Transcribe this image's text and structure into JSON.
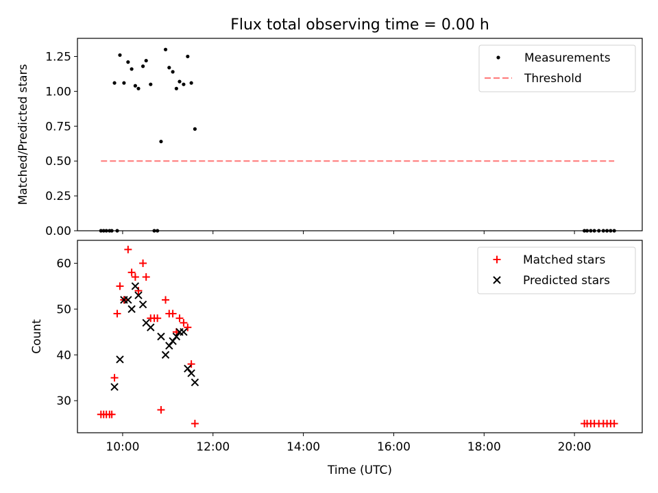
{
  "title": "Flux total observing time = 0.00 h",
  "chart_data": [
    {
      "type": "scatter",
      "ylabel": "Matched/Predicted stars",
      "xlabel": "",
      "xlim": [
        9.0,
        21.5
      ],
      "ylim": [
        0.0,
        1.38
      ],
      "yticks": [
        0.0,
        0.25,
        0.5,
        0.75,
        1.0,
        1.25
      ],
      "ytick_labels": [
        "0.00",
        "0.25",
        "0.50",
        "0.75",
        "1.00",
        "1.25"
      ],
      "legend_position": "upper-right",
      "series": [
        {
          "name": "Measurements",
          "marker": "dot",
          "color": "#000000",
          "x": [
            9.52,
            9.58,
            9.64,
            9.71,
            9.76,
            9.82,
            9.88,
            9.94,
            10.03,
            10.12,
            10.2,
            10.28,
            10.35,
            10.45,
            10.52,
            10.62,
            10.7,
            10.77,
            10.85,
            10.95,
            11.03,
            11.11,
            11.19,
            11.26,
            11.35,
            11.44,
            11.52,
            11.6,
            20.22,
            20.28,
            20.36,
            20.44,
            20.54,
            20.64,
            20.72,
            20.8,
            20.88
          ],
          "y": [
            0.0,
            0.0,
            0.0,
            0.0,
            0.0,
            1.06,
            0.0,
            1.26,
            1.06,
            1.21,
            1.16,
            1.04,
            1.02,
            1.18,
            1.22,
            1.05,
            0.0,
            0.0,
            0.64,
            1.3,
            1.17,
            1.14,
            1.02,
            1.07,
            1.05,
            1.25,
            1.06,
            0.73,
            0.0,
            0.0,
            0.0,
            0.0,
            0.0,
            0.0,
            0.0,
            0.0,
            0.0
          ]
        },
        {
          "name": "Threshold",
          "marker": "dashed-line",
          "color": "#ff7f7f",
          "x": [
            9.52,
            20.88
          ],
          "y": [
            0.5,
            0.5
          ]
        }
      ]
    },
    {
      "type": "scatter",
      "ylabel": "Count",
      "xlabel": "Time (UTC)",
      "xlim": [
        9.0,
        21.5
      ],
      "ylim": [
        23.0,
        65.0
      ],
      "yticks": [
        30,
        40,
        50,
        60
      ],
      "ytick_labels": [
        "30",
        "40",
        "50",
        "60"
      ],
      "xticks": [
        10,
        12,
        14,
        16,
        18,
        20
      ],
      "xtick_labels": [
        "10:00",
        "12:00",
        "14:00",
        "16:00",
        "18:00",
        "20:00"
      ],
      "legend_position": "upper-right",
      "series": [
        {
          "name": "Matched stars",
          "marker": "plus",
          "color": "#ff0000",
          "x": [
            9.52,
            9.58,
            9.64,
            9.71,
            9.76,
            9.82,
            9.88,
            9.94,
            10.03,
            10.12,
            10.2,
            10.28,
            10.35,
            10.45,
            10.52,
            10.62,
            10.7,
            10.77,
            10.85,
            10.95,
            11.03,
            11.11,
            11.19,
            11.26,
            11.35,
            11.44,
            11.52,
            11.6,
            20.22,
            20.28,
            20.36,
            20.44,
            20.54,
            20.64,
            20.72,
            20.8,
            20.88
          ],
          "y": [
            27,
            27,
            27,
            27,
            27,
            35,
            49,
            55,
            52,
            63,
            58,
            57,
            54,
            60,
            57,
            48,
            48,
            48,
            28,
            52,
            49,
            49,
            45,
            48,
            47,
            46,
            38,
            25,
            25,
            25,
            25,
            25,
            25,
            25,
            25,
            25,
            25
          ]
        },
        {
          "name": "Predicted stars",
          "marker": "x",
          "color": "#000000",
          "x": [
            9.82,
            9.94,
            10.03,
            10.12,
            10.2,
            10.28,
            10.35,
            10.45,
            10.52,
            10.62,
            10.85,
            10.95,
            11.03,
            11.11,
            11.19,
            11.26,
            11.35,
            11.44,
            11.52,
            11.6
          ],
          "y": [
            33,
            39,
            52,
            52,
            50,
            55,
            53,
            51,
            47,
            46,
            44,
            40,
            42,
            43,
            44,
            45,
            45,
            37,
            36,
            34
          ]
        }
      ]
    }
  ]
}
